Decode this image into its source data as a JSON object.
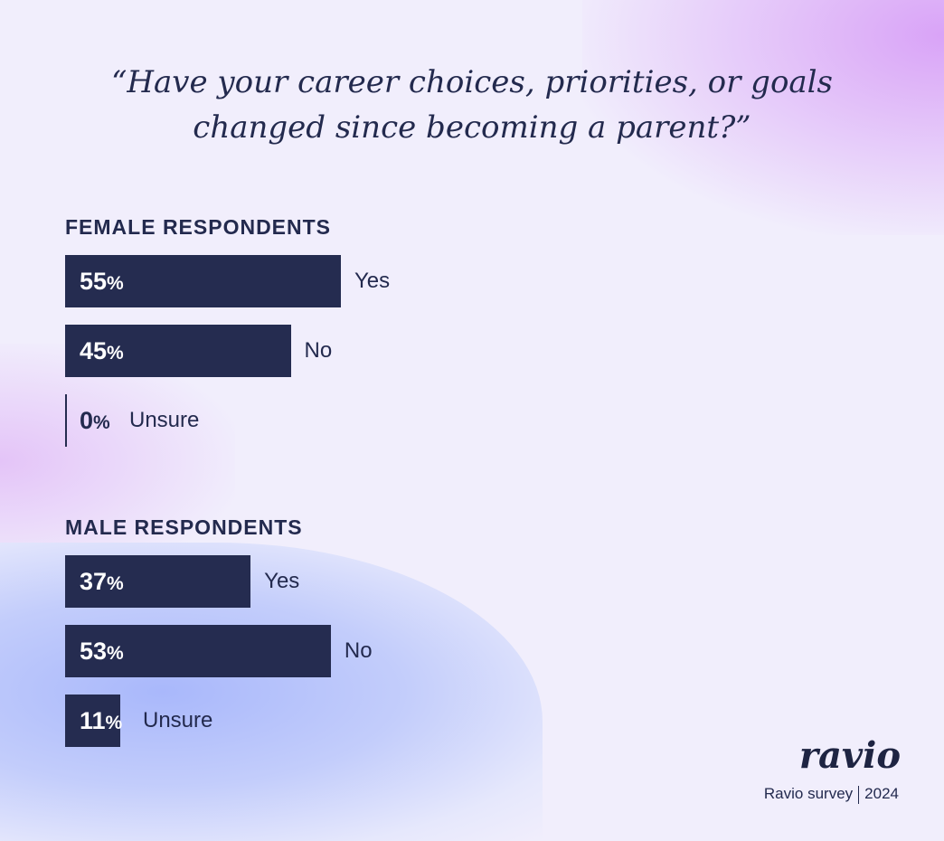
{
  "chart_data": {
    "type": "bar",
    "title": [
      "“Have your career choices, priorities, or goals",
      "changed since becoming a parent?”"
    ],
    "unit": "%",
    "bar_color": "#252c50",
    "groups": [
      {
        "name": "FEMALE RESPONDENTS",
        "categories": [
          "Yes",
          "No",
          "Unsure"
        ],
        "values": [
          55,
          45,
          0
        ]
      },
      {
        "name": "MALE RESPONDENTS",
        "categories": [
          "Yes",
          "No",
          "Unsure"
        ],
        "values": [
          37,
          53,
          11
        ]
      }
    ]
  },
  "brand": {
    "logo": "ravio",
    "source": "Ravio survey",
    "year": "2024"
  }
}
